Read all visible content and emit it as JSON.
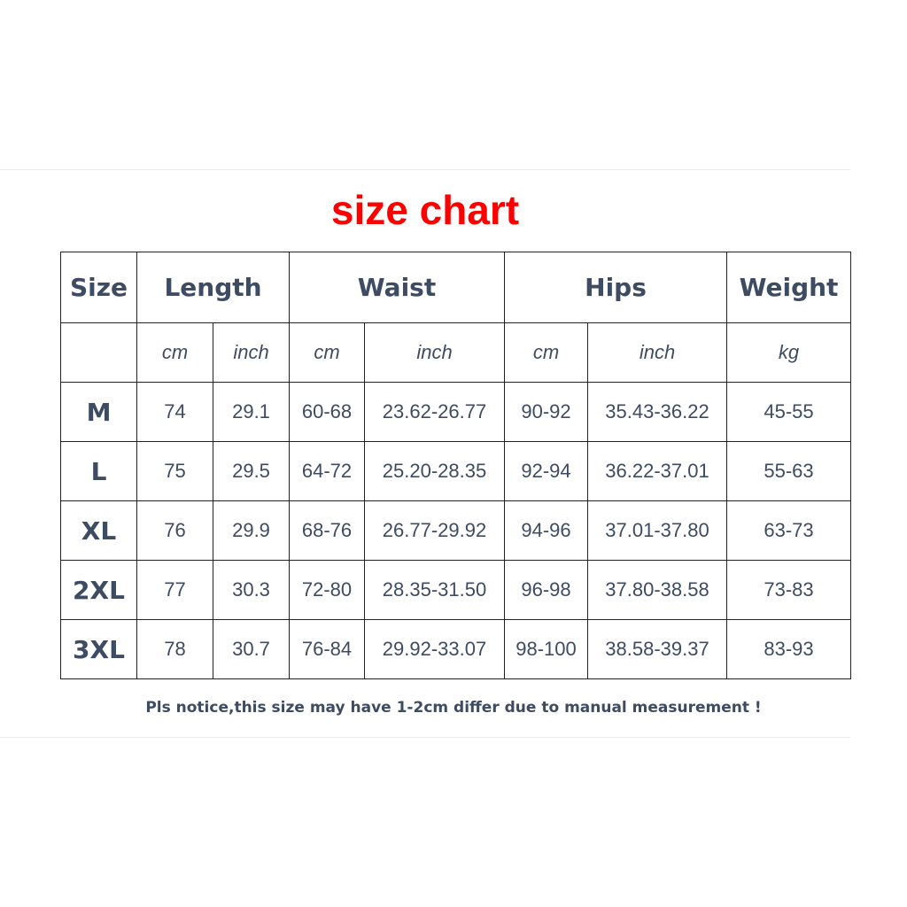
{
  "title": "size chart",
  "headers": {
    "size": "Size",
    "length": "Length",
    "waist": "Waist",
    "hips": "Hips",
    "weight": "Weight"
  },
  "units": [
    "cm",
    "inch",
    "cm",
    "inch",
    "cm",
    "inch",
    "kg"
  ],
  "rows": [
    [
      "M",
      "74",
      "29.1",
      "60-68",
      "23.62-26.77",
      "90-92",
      "35.43-36.22",
      "45-55"
    ],
    [
      "L",
      "75",
      "29.5",
      "64-72",
      "25.20-28.35",
      "92-94",
      "36.22-37.01",
      "55-63"
    ],
    [
      "XL",
      "76",
      "29.9",
      "68-76",
      "26.77-29.92",
      "94-96",
      "37.01-37.80",
      "63-73"
    ],
    [
      "2XL",
      "77",
      "30.3",
      "72-80",
      "28.35-31.50",
      "96-98",
      "37.80-38.58",
      "73-83"
    ],
    [
      "3XL",
      "78",
      "30.7",
      "76-84",
      "29.92-33.07",
      "98-100",
      "38.58-39.37",
      "83-93"
    ]
  ],
  "note": "Pls notice,this size may have 1-2cm differ due to manual measurement !",
  "colors": {
    "title": "#ff0000",
    "text": "#3d4b63",
    "border": "#222222"
  }
}
